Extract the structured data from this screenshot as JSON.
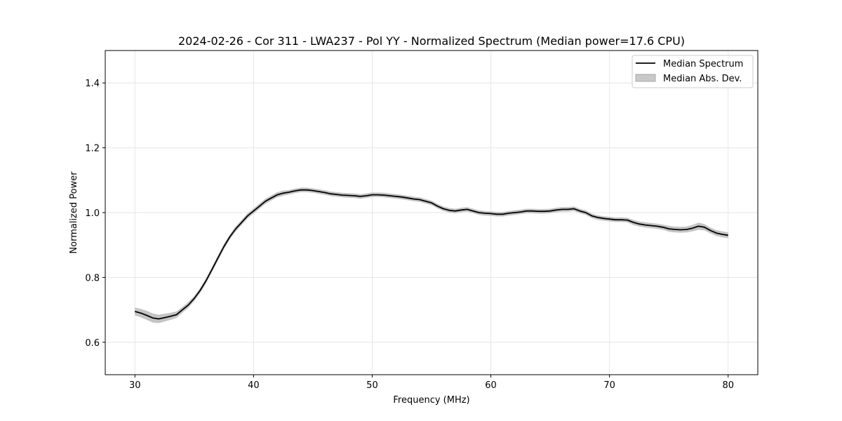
{
  "chart_data": {
    "type": "line",
    "title": "2024-02-26 - Cor 311 - LWA237 - Pol YY - Normalized Spectrum (Median power=17.6 CPU)",
    "xlabel": "Frequency (MHz)",
    "ylabel": "Normalized Power",
    "xlim": [
      27.5,
      82.5
    ],
    "ylim": [
      0.5,
      1.5
    ],
    "xticks": [
      30,
      40,
      50,
      60,
      70,
      80
    ],
    "yticks": [
      0.6,
      0.8,
      1.0,
      1.2,
      1.4
    ],
    "xtick_labels": [
      "30",
      "40",
      "50",
      "60",
      "70",
      "80"
    ],
    "ytick_labels": [
      "0.6",
      "0.8",
      "1.0",
      "1.2",
      "1.4"
    ],
    "grid": true,
    "legend_position": "top-right",
    "legend": [
      "Median Spectrum",
      "Median Abs. Dev."
    ],
    "colors": {
      "line": "#000000",
      "band": "#b0b0b0",
      "grid": "#e6e6e6"
    },
    "series": [
      {
        "name": "Median Spectrum",
        "x": [
          30,
          30.5,
          31,
          31.5,
          32,
          32.5,
          33,
          33.5,
          34,
          34.5,
          35,
          35.5,
          36,
          36.5,
          37,
          37.5,
          38,
          38.5,
          39,
          39.5,
          40,
          40.5,
          41,
          41.5,
          42,
          42.5,
          43,
          43.5,
          44,
          44.5,
          45,
          45.5,
          46,
          46.5,
          47,
          47.5,
          48,
          48.5,
          49,
          49.5,
          50,
          50.5,
          51,
          51.5,
          52,
          52.5,
          53,
          53.5,
          54,
          54.5,
          55,
          55.5,
          56,
          56.5,
          57,
          57.5,
          58,
          58.5,
          59,
          59.5,
          60,
          60.5,
          61,
          61.5,
          62,
          62.5,
          63,
          63.5,
          64,
          64.5,
          65,
          65.5,
          66,
          66.5,
          67,
          67.5,
          68,
          68.5,
          69,
          69.5,
          70,
          70.5,
          71,
          71.5,
          72,
          72.5,
          73,
          73.5,
          74,
          74.5,
          75,
          75.5,
          76,
          76.5,
          77,
          77.5,
          78,
          78.5,
          79,
          79.5,
          80
        ],
        "y": [
          0.695,
          0.69,
          0.683,
          0.675,
          0.672,
          0.676,
          0.68,
          0.685,
          0.7,
          0.715,
          0.735,
          0.76,
          0.79,
          0.825,
          0.86,
          0.895,
          0.925,
          0.95,
          0.97,
          0.99,
          1.005,
          1.02,
          1.035,
          1.045,
          1.055,
          1.06,
          1.063,
          1.067,
          1.07,
          1.07,
          1.068,
          1.065,
          1.062,
          1.058,
          1.056,
          1.054,
          1.053,
          1.052,
          1.05,
          1.052,
          1.055,
          1.055,
          1.054,
          1.052,
          1.05,
          1.048,
          1.045,
          1.042,
          1.04,
          1.035,
          1.03,
          1.02,
          1.012,
          1.007,
          1.005,
          1.008,
          1.01,
          1.005,
          1.0,
          0.998,
          0.997,
          0.995,
          0.995,
          0.998,
          1.0,
          1.002,
          1.005,
          1.005,
          1.004,
          1.004,
          1.005,
          1.008,
          1.01,
          1.01,
          1.012,
          1.005,
          1.0,
          0.99,
          0.985,
          0.982,
          0.98,
          0.978,
          0.978,
          0.977,
          0.97,
          0.965,
          0.962,
          0.96,
          0.958,
          0.955,
          0.95,
          0.948,
          0.947,
          0.948,
          0.952,
          0.958,
          0.955,
          0.945,
          0.937,
          0.933,
          0.93
        ]
      }
    ],
    "band": {
      "name": "Median Abs. Dev.",
      "half_width": [
        0.012,
        0.013,
        0.014,
        0.014,
        0.013,
        0.012,
        0.011,
        0.01,
        0.009,
        0.009,
        0.008,
        0.008,
        0.008,
        0.008,
        0.008,
        0.008,
        0.008,
        0.008,
        0.008,
        0.008,
        0.008,
        0.008,
        0.008,
        0.008,
        0.008,
        0.008,
        0.007,
        0.007,
        0.007,
        0.007,
        0.007,
        0.007,
        0.007,
        0.007,
        0.007,
        0.007,
        0.007,
        0.007,
        0.007,
        0.007,
        0.007,
        0.007,
        0.007,
        0.007,
        0.007,
        0.007,
        0.007,
        0.007,
        0.007,
        0.007,
        0.007,
        0.007,
        0.007,
        0.007,
        0.007,
        0.007,
        0.007,
        0.007,
        0.007,
        0.007,
        0.007,
        0.007,
        0.007,
        0.007,
        0.007,
        0.007,
        0.007,
        0.007,
        0.007,
        0.007,
        0.007,
        0.007,
        0.007,
        0.007,
        0.007,
        0.007,
        0.007,
        0.007,
        0.007,
        0.007,
        0.007,
        0.007,
        0.007,
        0.007,
        0.008,
        0.008,
        0.008,
        0.008,
        0.008,
        0.008,
        0.009,
        0.009,
        0.009,
        0.009,
        0.01,
        0.011,
        0.01,
        0.009,
        0.009,
        0.009,
        0.009
      ]
    }
  }
}
